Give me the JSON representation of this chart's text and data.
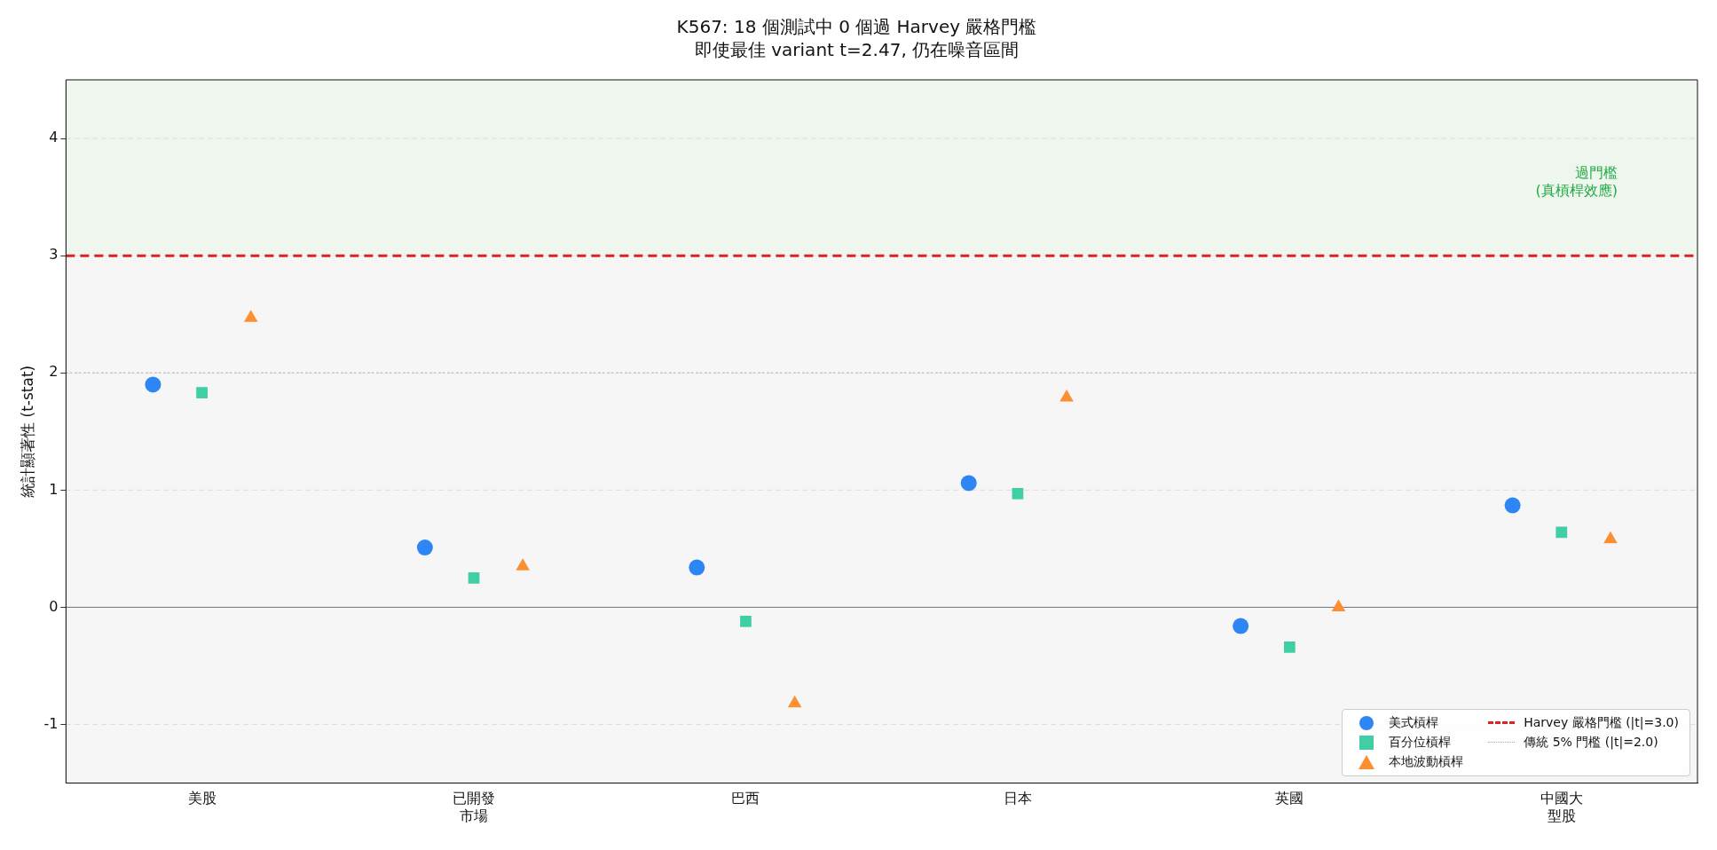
{
  "chart_data": {
    "type": "scatter",
    "title": "K567: 18 個測試中 0 個過 Harvey 嚴格門檻",
    "subtitle": "即使最佳 variant t=2.47, 仍在噪音區間",
    "ylabel": "統計顯著性 (t-stat)",
    "categories": [
      "美股",
      "已開發市場",
      "巴西",
      "日本",
      "英國",
      "中國大型股"
    ],
    "series": [
      {
        "name": "美式槓桿",
        "color": "#2e86f5",
        "marker": "circle",
        "x": [
          "美股",
          "已開發市場",
          "巴西",
          "日本",
          "英國",
          "中國大型股"
        ],
        "values": [
          1.9,
          0.51,
          0.34,
          1.06,
          -0.16,
          0.87
        ]
      },
      {
        "name": "百分位槓桿",
        "color": "#40cfa4",
        "marker": "square",
        "x": [
          "美股",
          "已開發市場",
          "巴西",
          "日本",
          "英國",
          "中國大型股"
        ],
        "values": [
          1.83,
          0.25,
          -0.12,
          0.97,
          -0.34,
          0.64
        ]
      },
      {
        "name": "本地波動槓桿",
        "color": "#fb8f32",
        "marker": "triangle",
        "x": [
          "美股",
          "已開發市場",
          "巴西",
          "日本",
          "英國",
          "中國大型股"
        ],
        "values": [
          2.47,
          0.35,
          -0.82,
          1.79,
          0.0,
          0.58
        ]
      }
    ],
    "ylim": [
      -1.5,
      4.5
    ],
    "yticks": [
      -1,
      0,
      1,
      2,
      3,
      4
    ],
    "grid": "y",
    "legend": "bottom right",
    "bands": [
      {
        "axis": "y",
        "from": 3,
        "to": 4.5,
        "label": "過門檻\n(真槓桿效應)",
        "color": "#eef6ee"
      },
      {
        "axis": "y",
        "from": -1.5,
        "to": 3,
        "color": "#f6f6f6"
      }
    ],
    "ref_lines": [
      {
        "axis": "y",
        "value": 3,
        "label": "Harvey 嚴格門檻 (|t|=3.0)",
        "color": "#dd2222",
        "line_style": "dashed"
      },
      {
        "axis": "y",
        "value": 2,
        "label": "傳統 5% 門檻 (|t|=2.0)",
        "color": "#aaaaaa",
        "line_style": "dotted"
      },
      {
        "axis": "y",
        "value": 0,
        "color": "#777777",
        "line_style": "solid"
      }
    ]
  }
}
